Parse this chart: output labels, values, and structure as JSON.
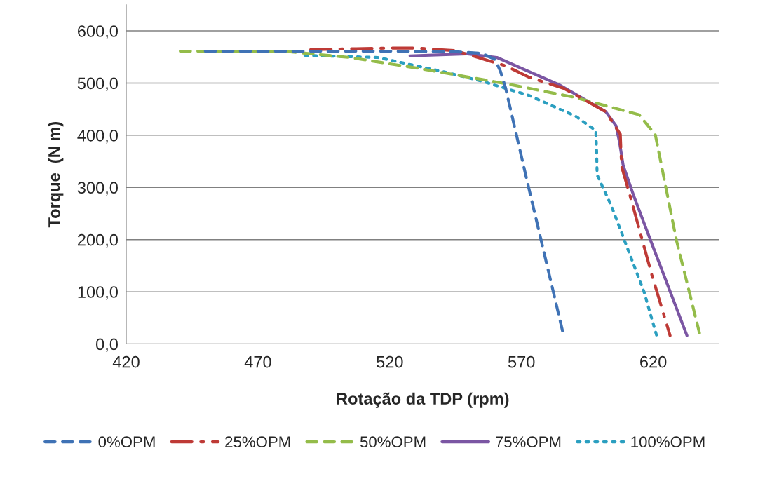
{
  "chart_data": {
    "type": "line",
    "xlabel": "Rotação da TDP (rpm)",
    "ylabel": "Torque  (N m)",
    "xlim": [
      420,
      645
    ],
    "xticks": [
      420,
      470,
      520,
      570,
      620
    ],
    "ylim": [
      0,
      650
    ],
    "yticks": [
      {
        "value": 0,
        "label": "0,0"
      },
      {
        "value": 100,
        "label": "100,0"
      },
      {
        "value": 200,
        "label": "200,0"
      },
      {
        "value": 300,
        "label": "300,0"
      },
      {
        "value": 400,
        "label": "400,0"
      },
      {
        "value": 500,
        "label": "500,0"
      },
      {
        "value": 600,
        "label": "600,0"
      }
    ],
    "grid": "y",
    "legend": "bottom",
    "marker": "none",
    "series": [
      {
        "name": "0%OPM",
        "color": "#3f72b5",
        "line_style": "dashed",
        "x": [
          450,
          480,
          520,
          545,
          555,
          560,
          562,
          564,
          571.6,
          586
        ],
        "values": [
          561,
          561,
          561,
          560,
          557,
          545,
          523,
          490,
          324,
          16
        ]
      },
      {
        "name": "25%OPM",
        "color": "#be3a36",
        "line_style": "dashdot",
        "x": [
          490,
          520,
          530,
          545,
          564,
          573,
          586,
          602,
          607.5,
          608,
          611,
          619.5,
          626.4
        ],
        "values": [
          564,
          567,
          567,
          562,
          533,
          511,
          490,
          445,
          402,
          340,
          288,
          132,
          16
        ]
      },
      {
        "name": "50%OPM",
        "color": "#94bc4a",
        "line_style": "dashed",
        "x": [
          440.5,
          480,
          504.8,
          530,
          564,
          590.7,
          614.7,
          620.8,
          628.8,
          637.8
        ],
        "values": [
          561,
          561,
          549,
          529,
          499,
          472,
          439,
          401,
          199,
          16
        ]
      },
      {
        "name": "75%OPM",
        "color": "#7b56a3",
        "line_style": "solid",
        "x": [
          527.7,
          549,
          560.7,
          584.6,
          602,
          605.9,
          607.2,
          608.6,
          612.6,
          619.2,
          632.8
        ],
        "values": [
          552,
          556,
          549,
          496,
          445,
          418,
          387,
          342,
          284,
          196,
          16
        ]
      },
      {
        "name": "100%OPM",
        "color": "#2b9fc0",
        "line_style": "dotted",
        "x": [
          487.8,
          515.5,
          539.4,
          555.4,
          573,
          590.7,
          598.2,
          598.5,
          598.7,
          604,
          616.5,
          621.3
        ],
        "values": [
          553,
          549,
          523,
          503,
          476,
          436,
          409,
          374,
          324,
          266,
          100,
          16
        ]
      }
    ]
  }
}
